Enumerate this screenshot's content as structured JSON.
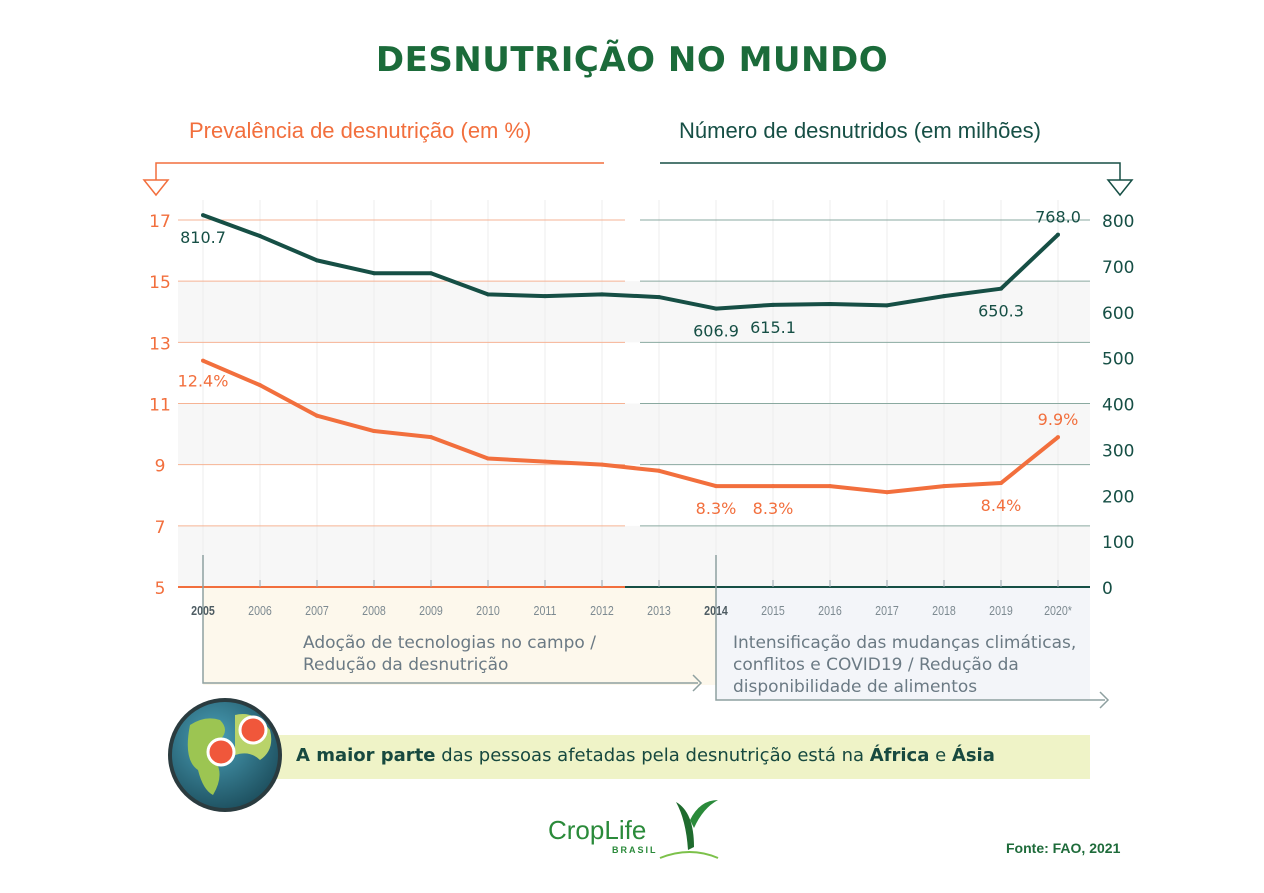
{
  "title": "DESNUTRIÇÃO NO MUNDO",
  "chart_data": {
    "type": "line",
    "title": "DESNUTRIÇÃO NO MUNDO",
    "x": [
      "2005",
      "2006",
      "2007",
      "2008",
      "2009",
      "2010",
      "2011",
      "2012",
      "2013",
      "2014",
      "2015",
      "2016",
      "2017",
      "2018",
      "2019",
      "2020*"
    ],
    "y_left": {
      "label": "Prevalência de desnutrição (em %)",
      "range": [
        5,
        17
      ],
      "ticks": [
        17,
        15,
        13,
        11,
        9,
        7,
        5
      ]
    },
    "y_right": {
      "label": "Número de desnutridos (em milhões)",
      "range": [
        0,
        800
      ],
      "ticks": [
        800,
        700,
        600,
        500,
        400,
        300,
        200,
        100,
        0
      ]
    },
    "series": [
      {
        "name": "Prevalência de desnutrição (em %)",
        "axis": "left",
        "color": "#f26f3d",
        "values": [
          12.4,
          11.6,
          10.6,
          10.1,
          9.9,
          9.2,
          9.1,
          9.0,
          8.8,
          8.3,
          8.3,
          8.3,
          8.1,
          8.3,
          8.4,
          9.9
        ],
        "labels": {
          "2005": "12.4%",
          "2014": "8.3%",
          "2015": "8.3%",
          "2019": "8.4%",
          "2020*": "9.9%"
        }
      },
      {
        "name": "Número de desnutridos (em milhões)",
        "axis": "right",
        "color": "#164f45",
        "values": [
          810.7,
          765,
          712,
          684,
          684,
          638,
          634,
          638,
          632,
          606.9,
          615.1,
          617,
          614,
          634,
          650.3,
          768.0
        ],
        "labels": {
          "2005": "810.7",
          "2014": "606.9",
          "2015": "615.1",
          "2019": "650.3",
          "2020*": "768.0"
        }
      }
    ],
    "grid": true,
    "highlighted_years": [
      "2005",
      "2014"
    ]
  },
  "periods": [
    {
      "text": "Adoção de tecnologias no campo / Redução da desnutrição",
      "lines": [
        "Adoção de tecnologias no campo /",
        "Redução da desnutrição"
      ],
      "color": "#fdf8ec"
    },
    {
      "text": "Intensificação das mudanças climáticas, conflitos e COVID19 / Redução da disponibilidade de alimentos",
      "lines": [
        "Intensificação das mudanças climáticas,",
        "conflitos e COVID19 / Redução da",
        "disponibilidade de alimentos"
      ],
      "color": "#f3f5f9"
    }
  ],
  "banner": {
    "bold1": "A maior parte",
    "mid": " das pessoas afetadas pela desnutrição está na ",
    "bold2": "África",
    "and": " e ",
    "bold3": "Ásia"
  },
  "logo": {
    "name": "CropLife",
    "sub": "BRASIL"
  },
  "source": "Fonte: FAO, 2021",
  "colors": {
    "orange": "#f26f3d",
    "green": "#164f45",
    "title": "#1b6b3a"
  }
}
